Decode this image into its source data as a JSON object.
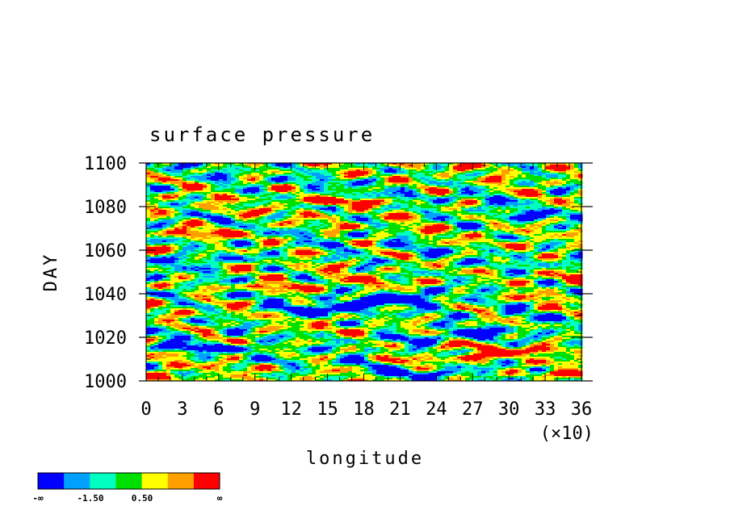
{
  "chart_data": {
    "type": "heatmap",
    "title": "surface pressure",
    "xlabel": "longitude",
    "ylabel": "DAY",
    "x_multiplier_label": "(×10)",
    "xlim": [
      0,
      36
    ],
    "ylim": [
      1000,
      1100
    ],
    "x_ticks": [
      "0",
      "3",
      "6",
      "9",
      "12",
      "15",
      "18",
      "21",
      "24",
      "27",
      "30",
      "33",
      "36"
    ],
    "y_ticks": [
      "1000",
      "1020",
      "1040",
      "1060",
      "1080",
      "1100"
    ],
    "y_tick_values": [
      1000,
      1020,
      1040,
      1060,
      1080,
      1100
    ],
    "colorbar": {
      "colors": [
        "#0000ff",
        "#00a0ff",
        "#00ffc0",
        "#00e000",
        "#ffff00",
        "#ffa000",
        "#ff0000"
      ],
      "labels": [
        "-∞",
        "-1.50",
        "0.50",
        "∞"
      ]
    }
  }
}
